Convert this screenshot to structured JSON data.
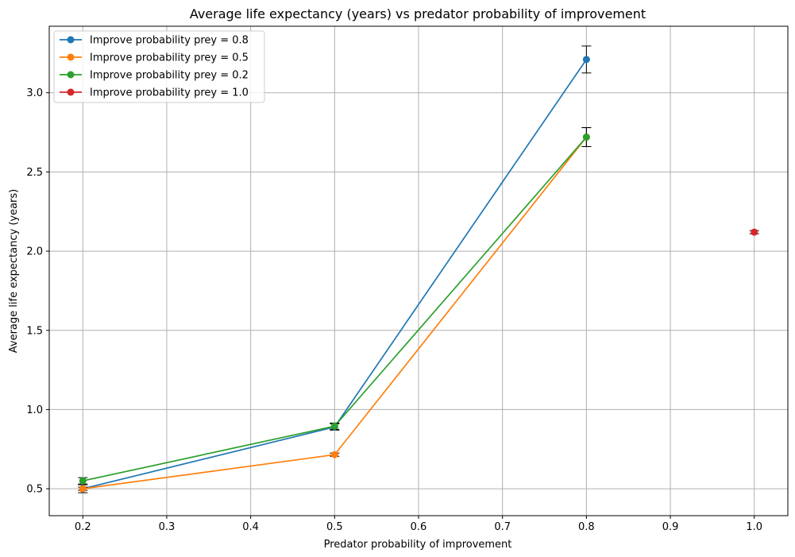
{
  "chart_data": {
    "type": "line",
    "title": "Average life expectancy (years) vs predator probability of improvement",
    "xlabel": "Predator probability of improvement",
    "ylabel": "Average life expectancy (years)",
    "xlim": [
      0.16,
      1.04
    ],
    "ylim": [
      0.33,
      3.42
    ],
    "xticks": [
      0.2,
      0.3,
      0.4,
      0.5,
      0.6,
      0.7,
      0.8,
      0.9,
      1.0
    ],
    "xtick_labels": [
      "0.2",
      "0.3",
      "0.4",
      "0.5",
      "0.6",
      "0.7",
      "0.8",
      "0.9",
      "1.0"
    ],
    "yticks": [
      0.5,
      1.0,
      1.5,
      2.0,
      2.5,
      3.0
    ],
    "ytick_labels": [
      "0.5",
      "1.0",
      "1.5",
      "2.0",
      "2.5",
      "3.0"
    ],
    "grid": true,
    "legend_position": "top-left",
    "series": [
      {
        "name": "Improve probability prey = 0.8",
        "color": "#1f77b4",
        "x": [
          0.2,
          0.5,
          0.8
        ],
        "y": [
          0.5,
          0.89,
          3.21
        ],
        "err": [
          0.025,
          0.02,
          0.085
        ]
      },
      {
        "name": "Improve probability prey = 0.5",
        "color": "#ff7f0e",
        "x": [
          0.2,
          0.5,
          0.8
        ],
        "y": [
          0.5,
          0.715,
          2.72
        ],
        "err": [
          0.01,
          0.01,
          0.06
        ]
      },
      {
        "name": "Improve probability prey = 0.2",
        "color": "#2ca02c",
        "x": [
          0.2,
          0.5,
          0.8
        ],
        "y": [
          0.55,
          0.895,
          2.72
        ],
        "err": [
          0.02,
          0.02,
          0.06
        ]
      },
      {
        "name": "Improve probability prey = 1.0",
        "color": "#d62728",
        "x": [
          1.0
        ],
        "y": [
          2.12
        ],
        "err": [
          0.01
        ]
      }
    ]
  }
}
